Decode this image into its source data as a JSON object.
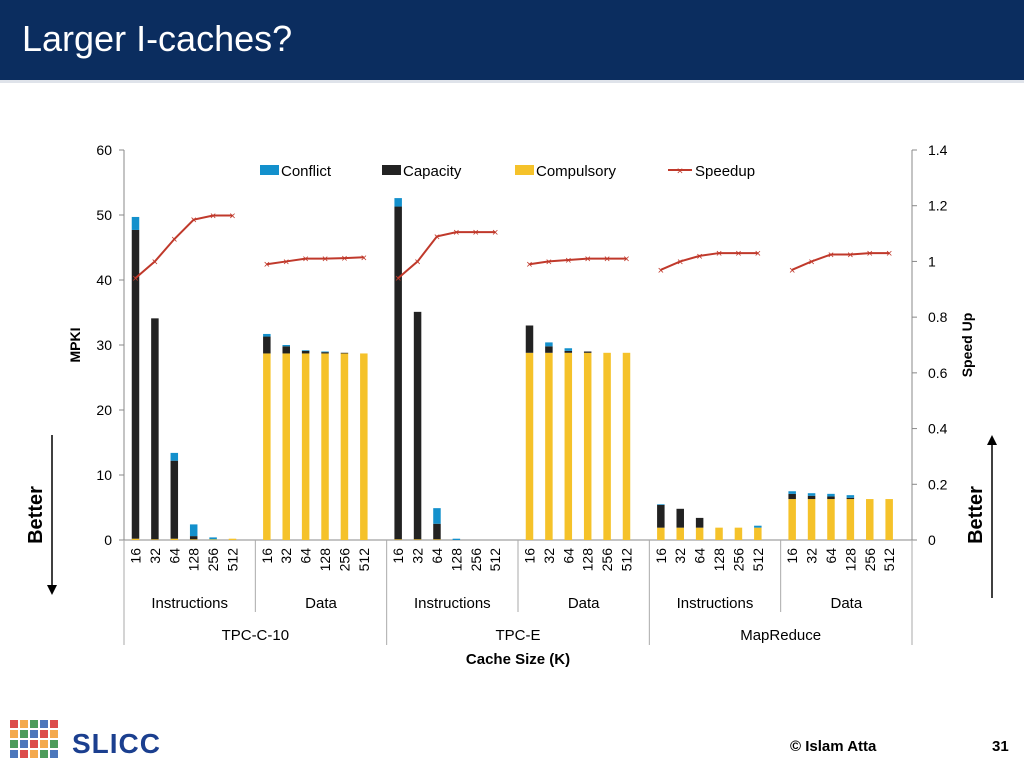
{
  "slide": {
    "title": "Larger I-caches?",
    "brand": "SLICC",
    "copyright": "© Islam Atta",
    "page_number": "31"
  },
  "colors": {
    "header_bg": "#0b2d5f",
    "conflict": "#1390cc",
    "capacity": "#222222",
    "compulsory": "#f5c22a",
    "speedup": "#c0392b"
  },
  "chart_data": {
    "type": "bar",
    "stacked": true,
    "ylabel": "MPKI",
    "y2label": "Speed Up",
    "xlabel": "Cache Size (K)",
    "ylim": [
      0,
      60
    ],
    "yticks": [
      0,
      10,
      20,
      30,
      40,
      50,
      60
    ],
    "y2lim": [
      0,
      1.4
    ],
    "y2ticks": [
      "0",
      "0.2",
      "0.4",
      "0.6",
      "0.8",
      "1",
      "1.2",
      "1.4"
    ],
    "legend": [
      "Conflict",
      "Capacity",
      "Compulsory",
      "Speedup"
    ],
    "legend_position": "top",
    "better_left": "Better",
    "better_right": "Better",
    "categories": [
      "16",
      "32",
      "64",
      "128",
      "256",
      "512"
    ],
    "groups": [
      {
        "workload": "TPC-C-10",
        "subgroups": [
          {
            "label": "Instructions",
            "conflict": [
              2.0,
              0,
              1.2,
              1.8,
              0.3,
              0
            ],
            "capacity": [
              47.5,
              34.0,
              12.0,
              0.5,
              0,
              0
            ],
            "compulsory": [
              0.2,
              0.1,
              0.2,
              0.1,
              0.1,
              0.2
            ],
            "speedup": [
              0.94,
              1.0,
              1.08,
              1.15,
              1.165,
              1.165
            ]
          },
          {
            "label": "Data",
            "conflict": [
              0.4,
              0.2,
              0.1,
              0.1,
              0,
              0
            ],
            "capacity": [
              2.6,
              1.1,
              0.4,
              0.2,
              0.1,
              0
            ],
            "compulsory": [
              28.7,
              28.7,
              28.7,
              28.7,
              28.7,
              28.7
            ],
            "speedup": [
              0.99,
              1.0,
              1.01,
              1.01,
              1.012,
              1.015
            ]
          }
        ]
      },
      {
        "workload": "TPC-E",
        "subgroups": [
          {
            "label": "Instructions",
            "conflict": [
              1.3,
              0,
              2.4,
              0.2,
              0,
              0
            ],
            "capacity": [
              51.2,
              35.0,
              2.4,
              0,
              0,
              0
            ],
            "compulsory": [
              0.1,
              0.1,
              0.1,
              0,
              0,
              0
            ],
            "speedup": [
              0.94,
              1.0,
              1.09,
              1.105,
              1.105,
              1.105
            ]
          },
          {
            "label": "Data",
            "conflict": [
              0,
              0.6,
              0.4,
              0,
              0,
              0
            ],
            "capacity": [
              4.2,
              1.0,
              0.3,
              0.2,
              0,
              0
            ],
            "compulsory": [
              28.8,
              28.8,
              28.8,
              28.8,
              28.8,
              28.8
            ],
            "speedup": [
              0.99,
              1.0,
              1.005,
              1.01,
              1.01,
              1.01
            ]
          }
        ]
      },
      {
        "workload": "MapReduce",
        "subgroups": [
          {
            "label": "Instructions",
            "conflict": [
              0.1,
              0,
              0,
              0,
              0,
              0.3
            ],
            "capacity": [
              3.5,
              2.9,
              1.5,
              0,
              0,
              0
            ],
            "compulsory": [
              1.9,
              1.9,
              1.9,
              1.9,
              1.9,
              1.9
            ],
            "speedup": [
              0.97,
              1.0,
              1.02,
              1.03,
              1.03,
              1.03
            ]
          },
          {
            "label": "Data",
            "conflict": [
              0.4,
              0.4,
              0.4,
              0.4,
              0,
              0
            ],
            "capacity": [
              0.8,
              0.5,
              0.4,
              0.2,
              0,
              0
            ],
            "compulsory": [
              6.3,
              6.3,
              6.3,
              6.3,
              6.3,
              6.3
            ],
            "speedup": [
              0.97,
              1.0,
              1.025,
              1.025,
              1.03,
              1.03
            ]
          }
        ]
      }
    ]
  }
}
